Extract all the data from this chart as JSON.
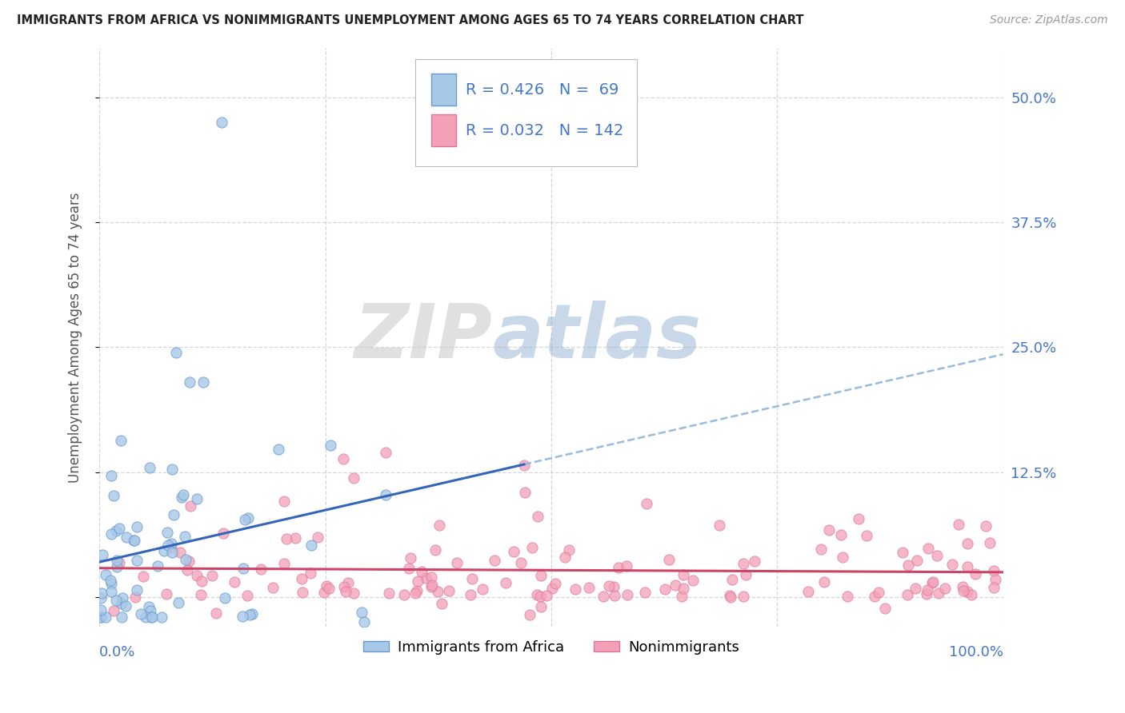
{
  "title": "IMMIGRANTS FROM AFRICA VS NONIMMIGRANTS UNEMPLOYMENT AMONG AGES 65 TO 74 YEARS CORRELATION CHART",
  "source": "Source: ZipAtlas.com",
  "ylabel": "Unemployment Among Ages 65 to 74 years",
  "xlim": [
    0.0,
    1.0
  ],
  "ylim": [
    -0.03,
    0.55
  ],
  "yticks": [
    0.0,
    0.125,
    0.25,
    0.375,
    0.5
  ],
  "yticklabels_right": [
    "",
    "12.5%",
    "25.0%",
    "37.5%",
    "50.0%"
  ],
  "xtick_left_label": "0.0%",
  "xtick_right_label": "100.0%",
  "africa_color": "#a8c8e8",
  "africa_edge": "#6699cc",
  "nonimm_color": "#f4a0b8",
  "nonimm_edge": "#dd7799",
  "africa_R": 0.426,
  "africa_N": 69,
  "nonimm_R": 0.032,
  "nonimm_N": 142,
  "legend_label1": "Immigrants from Africa",
  "legend_label2": "Nonimmigrants",
  "watermark_zip": "ZIP",
  "watermark_atlas": "atlas",
  "africa_line_color": "#3366bb",
  "africa_dash_color": "#99bbdd",
  "nonimm_line_color": "#cc4466",
  "grid_color": "#cccccc",
  "tick_color": "#4477cc",
  "title_color": "#222222",
  "background_color": "#ffffff"
}
